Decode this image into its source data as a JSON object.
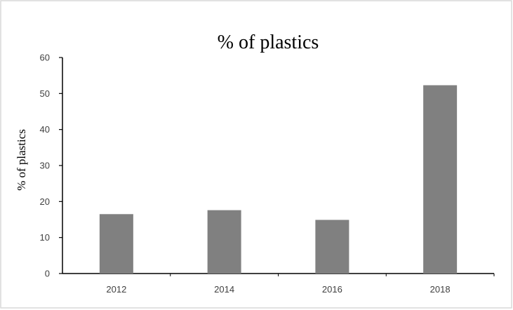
{
  "chart_data": {
    "type": "bar",
    "title": "% of plastics",
    "xlabel": "",
    "ylabel": "% of plastics",
    "categories": [
      "2012",
      "2014",
      "2016",
      "2018"
    ],
    "values": [
      16.5,
      17.6,
      14.9,
      52.3
    ],
    "ylim": [
      0,
      60
    ],
    "yticks": [
      0,
      10,
      20,
      30,
      40,
      50,
      60
    ],
    "yticks_labels": [
      "0",
      "10",
      "20",
      "30",
      "40",
      "50",
      "60"
    ],
    "grid": false,
    "legend": "none",
    "colors": {
      "bar": "#808080",
      "axis": "#000000",
      "border": "#d9d9d9",
      "text": "#404040"
    }
  }
}
